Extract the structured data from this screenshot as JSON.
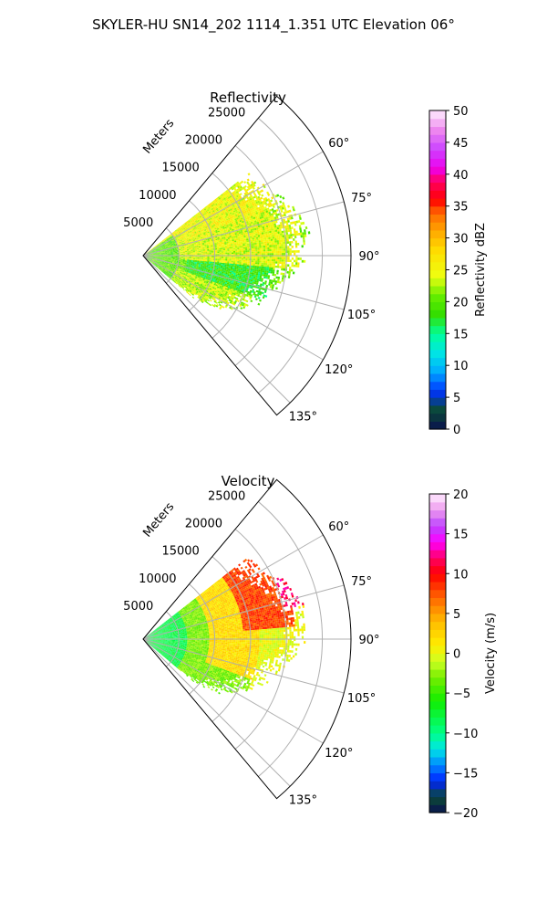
{
  "figure": {
    "suptitle": "SKYLER-HU  SN14_202  1114_1.351 UTC Elevation 06°"
  },
  "chart_data": [
    {
      "type": "heatmap",
      "projection": "polar-sector",
      "title": "Reflectivity",
      "range_axis_label": "Meters",
      "range_ticks": [
        5000,
        10000,
        15000,
        20000,
        25000
      ],
      "range_tick_labels": [
        "5000",
        "10000",
        "15000",
        "20000",
        "25000"
      ],
      "range_max": 29000,
      "azimuth_range_deg": [
        40,
        140
      ],
      "azimuth_ticks_deg": [
        60,
        75,
        90,
        105,
        120,
        135
      ],
      "azimuth_tick_labels": [
        "60°",
        "75°",
        "90°",
        "105°",
        "120°",
        "135°"
      ],
      "grid": true,
      "data_extent": {
        "azimuth_deg": [
          52,
          130
        ],
        "range_m_min": 0,
        "range_m_max_by_azimuth": [
          [
            52,
            18500
          ],
          [
            60,
            19500
          ],
          [
            68,
            21500
          ],
          [
            75,
            22500
          ],
          [
            80,
            23500
          ],
          [
            88,
            23000
          ],
          [
            95,
            22000
          ],
          [
            102,
            19500
          ],
          [
            110,
            18000
          ],
          [
            118,
            16000
          ],
          [
            125,
            13000
          ],
          [
            130,
            9000
          ]
        ]
      },
      "field_description": [
        {
          "azimuth_deg": [
            52,
            70
          ],
          "range_m": [
            0,
            20000
          ],
          "value_dbz": 25
        },
        {
          "azimuth_deg": [
            70,
            95
          ],
          "range_m": [
            5000,
            22000
          ],
          "value_dbz": 24
        },
        {
          "azimuth_deg": [
            95,
            110
          ],
          "range_m": [
            6000,
            18000
          ],
          "value_dbz": 18
        },
        {
          "azimuth_deg": [
            110,
            130
          ],
          "range_m": [
            0,
            16000
          ],
          "value_dbz": 23
        },
        {
          "azimuth_deg": [
            55,
            130
          ],
          "range_m": [
            0,
            5000
          ],
          "value_dbz": 20
        }
      ],
      "colorbar": {
        "label": "Reflectivity dBZ",
        "min": 0,
        "max": 50,
        "ticks": [
          0,
          5,
          10,
          15,
          20,
          25,
          30,
          35,
          40,
          45,
          50
        ],
        "tick_labels": [
          "0",
          "5",
          "10",
          "15",
          "20",
          "25",
          "30",
          "35",
          "40",
          "45",
          "50"
        ],
        "stops": [
          [
            0,
            "#0a1150"
          ],
          [
            3,
            "#0b4a35"
          ],
          [
            6,
            "#0033ff"
          ],
          [
            9,
            "#00aaff"
          ],
          [
            12,
            "#00e5e5"
          ],
          [
            15,
            "#00ff99"
          ],
          [
            18,
            "#33dd00"
          ],
          [
            21,
            "#66ee00"
          ],
          [
            24,
            "#eeff11"
          ],
          [
            28,
            "#ffdd00"
          ],
          [
            31,
            "#ffaa00"
          ],
          [
            34,
            "#ff6600"
          ],
          [
            36,
            "#ff0000"
          ],
          [
            39,
            "#ff0066"
          ],
          [
            41,
            "#ee00ee"
          ],
          [
            44,
            "#cc44ff"
          ],
          [
            47,
            "#ee88ee"
          ],
          [
            50,
            "#ffeeff"
          ]
        ]
      }
    },
    {
      "type": "heatmap",
      "projection": "polar-sector",
      "title": "Velocity",
      "range_axis_label": "Meters",
      "range_ticks": [
        5000,
        10000,
        15000,
        20000,
        25000
      ],
      "range_tick_labels": [
        "5000",
        "10000",
        "15000",
        "20000",
        "25000"
      ],
      "range_max": 29000,
      "azimuth_range_deg": [
        40,
        140
      ],
      "azimuth_ticks_deg": [
        60,
        75,
        90,
        105,
        120,
        135
      ],
      "azimuth_tick_labels": [
        "60°",
        "75°",
        "90°",
        "105°",
        "120°",
        "135°"
      ],
      "grid": true,
      "data_extent": {
        "azimuth_deg": [
          52,
          130
        ],
        "range_m_min": 0,
        "range_m_max_by_azimuth": [
          [
            52,
            18500
          ],
          [
            60,
            19500
          ],
          [
            68,
            21500
          ],
          [
            75,
            22500
          ],
          [
            80,
            23500
          ],
          [
            88,
            23000
          ],
          [
            95,
            22000
          ],
          [
            102,
            19500
          ],
          [
            110,
            18000
          ],
          [
            118,
            16000
          ],
          [
            125,
            13000
          ],
          [
            130,
            9000
          ]
        ]
      },
      "field_description": [
        {
          "azimuth_deg": [
            52,
            130
          ],
          "range_m": [
            0,
            6000
          ],
          "value_ms": -8
        },
        {
          "azimuth_deg": [
            52,
            130
          ],
          "range_m": [
            6000,
            9000
          ],
          "value_ms": -3
        },
        {
          "azimuth_deg": [
            52,
            110
          ],
          "range_m": [
            9000,
            16000
          ],
          "value_ms": 2
        },
        {
          "azimuth_deg": [
            52,
            85
          ],
          "range_m": [
            14000,
            21000
          ],
          "value_ms": 8
        },
        {
          "azimuth_deg": [
            58,
            78
          ],
          "range_m": [
            20000,
            23500
          ],
          "value_ms": 12
        },
        {
          "azimuth_deg": [
            110,
            130
          ],
          "range_m": [
            9000,
            16000
          ],
          "value_ms": -3
        }
      ],
      "colorbar": {
        "label": "Velocity (m/s)",
        "min": -20,
        "max": 20,
        "ticks": [
          -20,
          -15,
          -10,
          -5,
          0,
          5,
          10,
          15,
          20
        ],
        "tick_labels": [
          "−20",
          "−15",
          "−10",
          "−5",
          "0",
          "5",
          "10",
          "15",
          "20"
        ],
        "stops": [
          [
            -20,
            "#0a1150"
          ],
          [
            -18,
            "#0b4a35"
          ],
          [
            -16,
            "#0022ff"
          ],
          [
            -14,
            "#0088ff"
          ],
          [
            -12,
            "#00e5e5"
          ],
          [
            -10,
            "#00ff88"
          ],
          [
            -6,
            "#11ee00"
          ],
          [
            -3,
            "#77ee00"
          ],
          [
            -1,
            "#ccff22"
          ],
          [
            1,
            "#ffee00"
          ],
          [
            4,
            "#ffbb00"
          ],
          [
            7,
            "#ff6600"
          ],
          [
            10,
            "#ff0000"
          ],
          [
            12,
            "#ff0066"
          ],
          [
            14,
            "#ff00ff"
          ],
          [
            16,
            "#bb44ff"
          ],
          [
            18,
            "#ee99ee"
          ],
          [
            20,
            "#ffeeff"
          ]
        ]
      }
    }
  ],
  "colors": {
    "axis_line": "#000000",
    "grid": "#b0b0b0",
    "background": "#ffffff"
  }
}
